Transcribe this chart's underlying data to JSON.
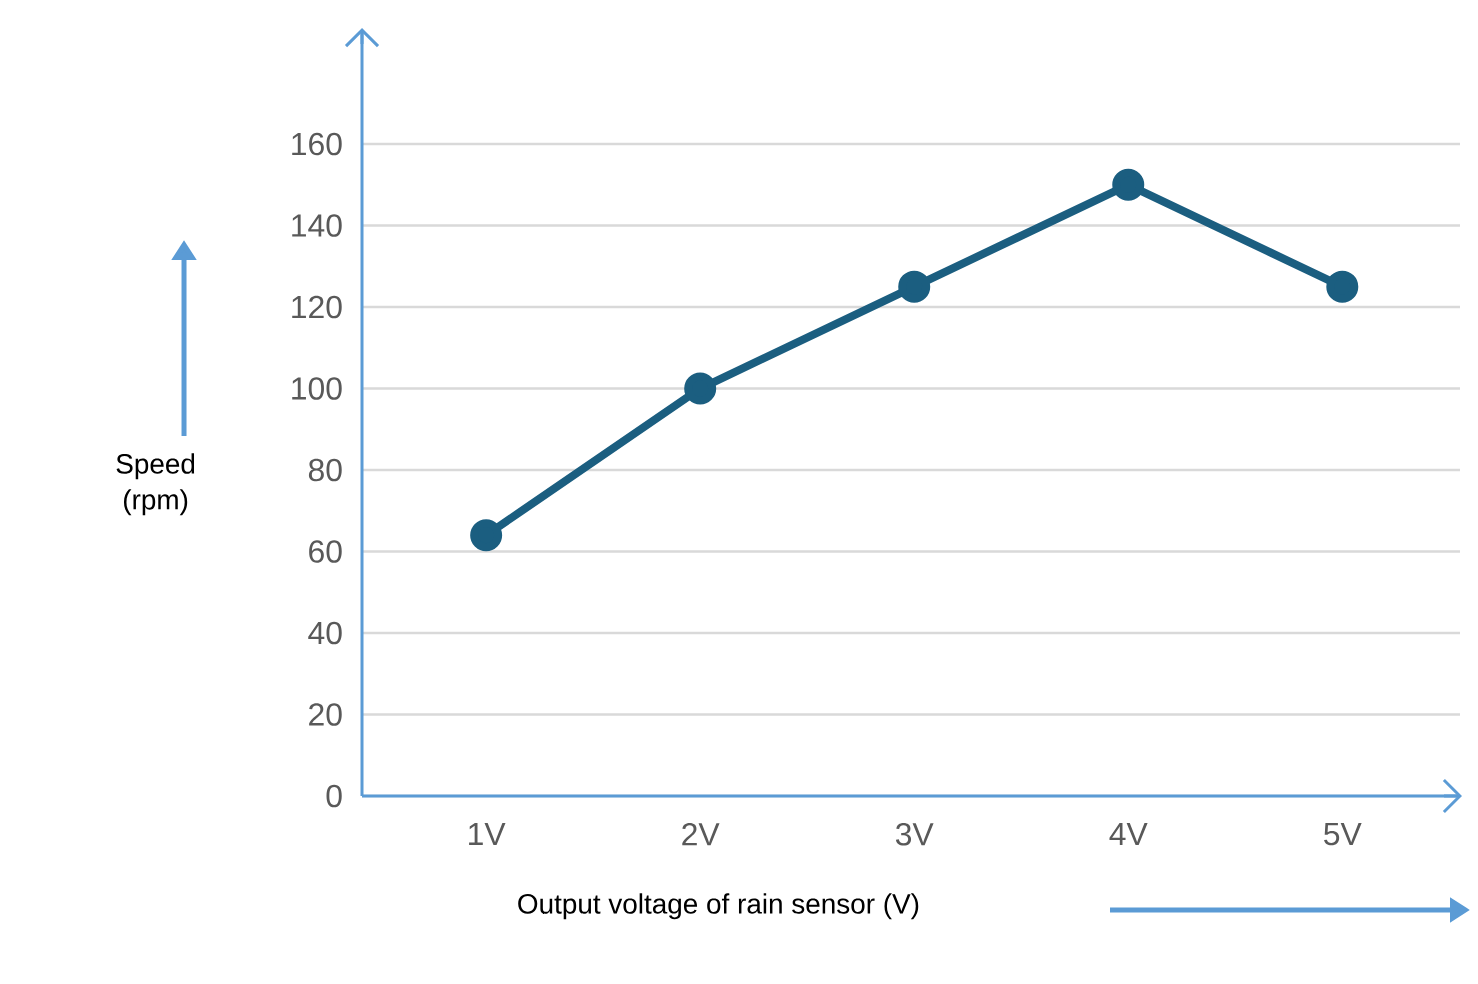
{
  "chart_data": {
    "type": "line",
    "xlabel": "Output voltage of rain sensor (V)",
    "ylabel": "Speed (rpm)",
    "categories": [
      "1V",
      "2V",
      "3V",
      "4V",
      "5V"
    ],
    "values": [
      64,
      100,
      125,
      150,
      125
    ],
    "color": "#1b5e80",
    "ylim": [
      0,
      188
    ],
    "yticks": [
      0,
      20,
      40,
      60,
      80,
      100,
      120,
      140,
      160
    ],
    "grid": "y",
    "marker": "circle",
    "line_style": "solid"
  }
}
